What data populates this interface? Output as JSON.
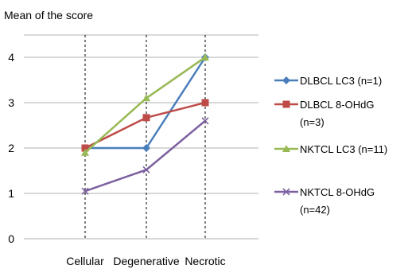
{
  "chart_data": {
    "type": "line",
    "title": "Mean of the score",
    "xlabel": "",
    "ylabel": "",
    "categories": [
      "Cellular",
      "Degenerative",
      "Necrotic"
    ],
    "ylim": [
      0,
      4
    ],
    "yticks": [
      "0",
      "1",
      "2",
      "3",
      "4"
    ],
    "grid": true,
    "legend_position": "right",
    "series": [
      {
        "name": "DLBCL LC3 (n=1)",
        "legend_lines": [
          "DLBCL LC3 (n=1)"
        ],
        "values": [
          2.0,
          2.0,
          4.0
        ],
        "color": "#4a7ebb",
        "marker": "diamond"
      },
      {
        "name": "DLBCL 8-OHdG (n=3)",
        "legend_lines": [
          "DLBCL 8-OHdG",
          "(n=3)"
        ],
        "values": [
          2.0,
          2.67,
          3.0
        ],
        "color": "#be4b48",
        "marker": "square"
      },
      {
        "name": "NKTCL LC3 (n=11)",
        "legend_lines": [
          "NKTCL LC3 (n=11)"
        ],
        "values": [
          1.9,
          3.1,
          4.0
        ],
        "color": "#98b954",
        "marker": "triangle"
      },
      {
        "name": "NKTCL 8-OHdG (n=42)",
        "legend_lines": [
          "NKTCL 8-OHdG",
          "(n=42)"
        ],
        "values": [
          1.05,
          1.52,
          2.6
        ],
        "color": "#7d60a0",
        "marker": "x"
      }
    ]
  }
}
